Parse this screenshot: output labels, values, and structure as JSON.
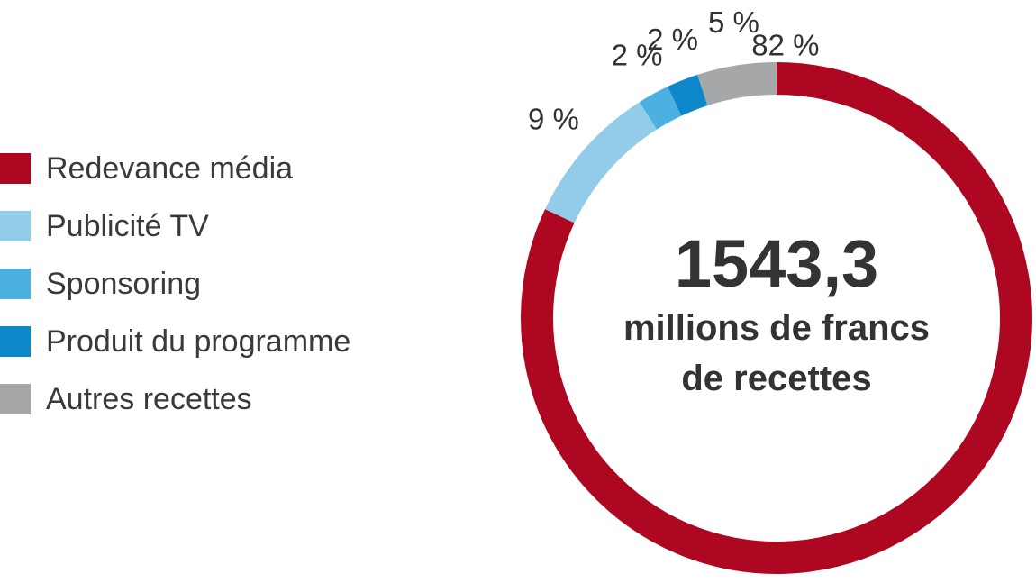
{
  "chart_data": {
    "type": "pie",
    "variant": "donut",
    "series": [
      {
        "name": "Redevance média",
        "value": 82,
        "label": "82 %",
        "color": "#ae0721"
      },
      {
        "name": "Publicité TV",
        "value": 9,
        "label": "9 %",
        "color": "#92cce9"
      },
      {
        "name": "Sponsoring",
        "value": 2,
        "label": "2 %",
        "color": "#4cb0e0"
      },
      {
        "name": "Produit du programme",
        "value": 2,
        "label": "2 %",
        "color": "#0c87c9"
      },
      {
        "name": "Autres recettes",
        "value": 5,
        "label": "5 %",
        "color": "#a6a7a8"
      }
    ],
    "center": {
      "value": "1543,3",
      "caption_line1": "millions de francs",
      "caption_line2": "de recettes"
    },
    "legend_position": "left",
    "start": "top",
    "direction": "clockwise"
  }
}
